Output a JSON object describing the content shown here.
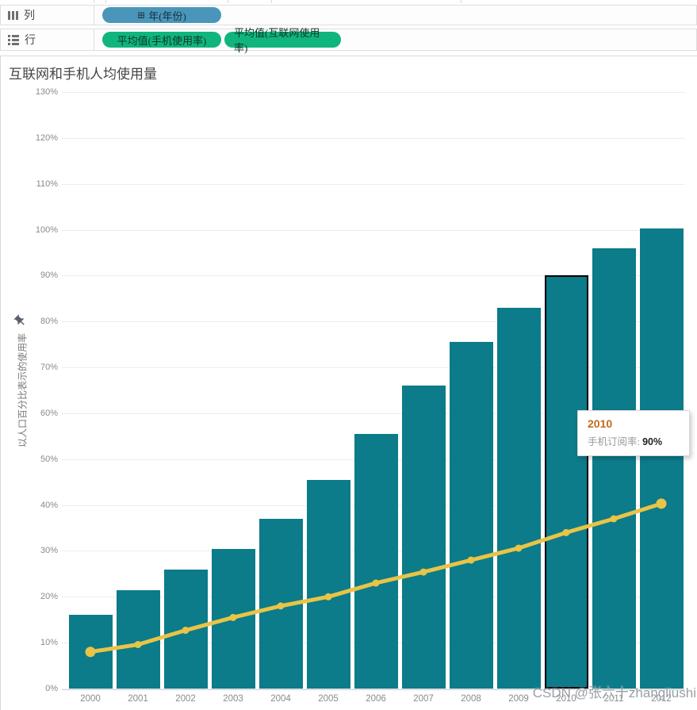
{
  "shelves": {
    "columns": {
      "label": "列",
      "pills": [
        {
          "text": "年(年份)",
          "icon": "expand-plus-icon"
        }
      ]
    },
    "rows": {
      "label": "行",
      "pills": [
        {
          "text": "平均值(手机使用率)"
        },
        {
          "text": "平均值(互联网使用率)"
        }
      ]
    }
  },
  "chart": {
    "title": "互联网和手机人均使用量",
    "y_axis_title": "以人口百分比表示的使用率",
    "watermark": "CSDN @张六十zhangliushi"
  },
  "tooltip": {
    "year": "2010",
    "label": "手机订阅率:",
    "value": "90%"
  },
  "colors": {
    "bar": "#0c7b8a",
    "line": "#e8c447",
    "pill_blue": "#4a96ba",
    "pill_green": "#10b57d",
    "tooltip_header": "#c06b1a"
  },
  "chart_data": {
    "type": "combo",
    "title": "互联网和手机人均使用量",
    "categories": [
      "2000",
      "2001",
      "2002",
      "2003",
      "2004",
      "2005",
      "2006",
      "2007",
      "2008",
      "2009",
      "2010",
      "2011",
      "2012"
    ],
    "series": [
      {
        "name": "平均值(手机使用率)",
        "type": "bar",
        "color": "#0c7b8a",
        "values": [
          16,
          21.5,
          26,
          30.5,
          37,
          45.5,
          55.5,
          66,
          75.5,
          83,
          90,
          96,
          100.3
        ]
      },
      {
        "name": "平均值(互联网使用率)",
        "type": "line",
        "color": "#e8c447",
        "values": [
          8,
          9.6,
          12.7,
          15.5,
          18,
          20,
          23,
          25.4,
          28,
          30.6,
          34,
          37,
          40.3
        ]
      }
    ],
    "xlabel": "",
    "ylabel": "以人口百分比表示的使用率",
    "ylim": [
      0,
      130
    ],
    "ytick_step": 10,
    "ytick_format": "percent",
    "grid": true,
    "legend": "none",
    "highlighted_category": "2010"
  }
}
